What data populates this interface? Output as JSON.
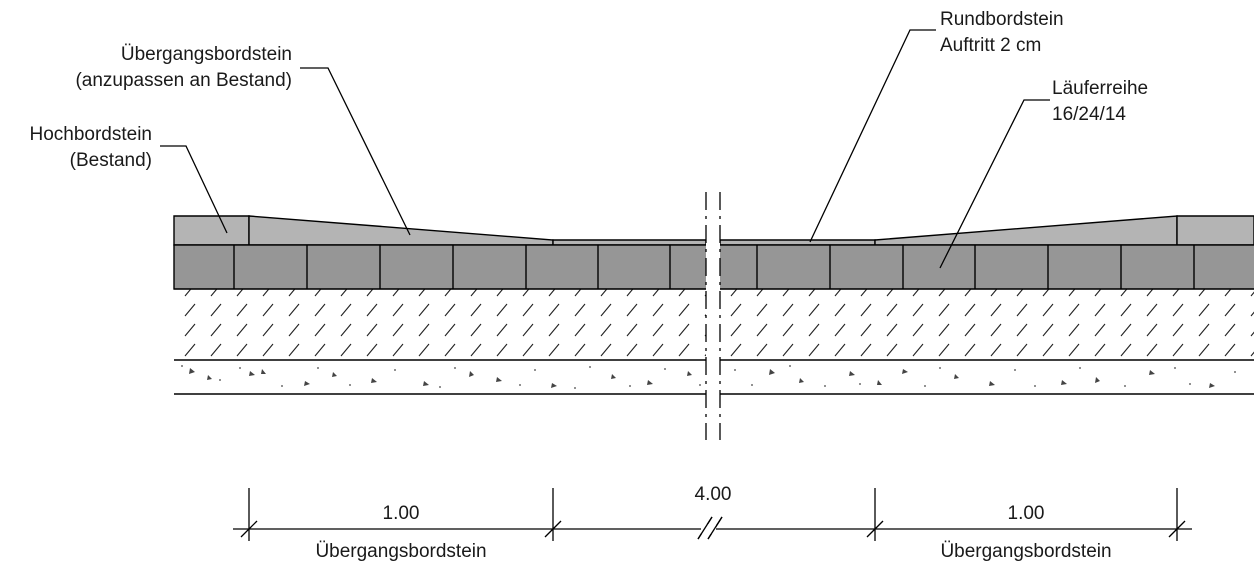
{
  "labels": {
    "hochbordstein": [
      "Hochbordstein",
      "(Bestand)"
    ],
    "uebergang_top": [
      "Übergangsbordstein",
      "(anzupassen an Bestand)"
    ],
    "rundbordstein": [
      "Rundbordstein",
      "Auftritt 2 cm"
    ],
    "laeuferreihe": [
      "Läuferreihe",
      "16/24/14"
    ]
  },
  "dimensions": [
    {
      "value": "1.00",
      "caption": "Übergangsbordstein"
    },
    {
      "value": "4.00",
      "caption": ""
    },
    {
      "value": "1.00",
      "caption": "Übergangsbordstein"
    }
  ],
  "colors": {
    "curb_top": "#b4b4b4",
    "runner_row": "#969696",
    "line": "#000000"
  }
}
